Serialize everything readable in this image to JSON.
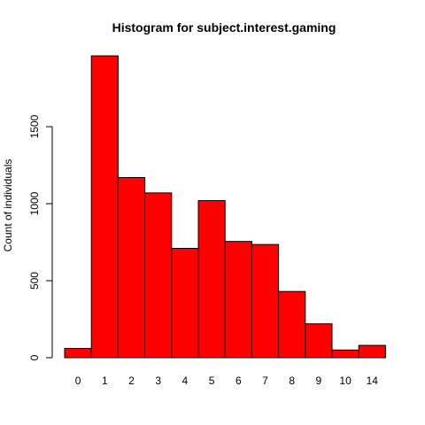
{
  "chart_data": {
    "type": "bar",
    "title": "Histogram for subject.interest.gaming",
    "xlabel": "",
    "ylabel": "Count of individuals",
    "categories": [
      "0",
      "1",
      "2",
      "3",
      "4",
      "5",
      "6",
      "7",
      "8",
      "9",
      "10",
      "14"
    ],
    "values": [
      60,
      1960,
      1170,
      1070,
      710,
      1020,
      755,
      735,
      430,
      220,
      50,
      80
    ],
    "ylim": [
      0,
      2000
    ],
    "yticks": [
      0,
      500,
      1000,
      1500
    ],
    "ytick_labels": [
      "0",
      "500",
      "1000",
      "1500"
    ],
    "grid": false,
    "bar_color": "#ff0000",
    "bar_edge_color": "#000000"
  }
}
